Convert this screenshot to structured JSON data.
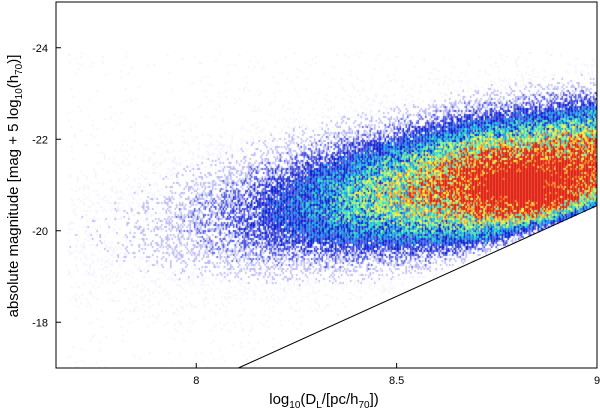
{
  "chart_data": {
    "type": "heatmap",
    "title": "",
    "xlabel": {
      "base": "log",
      "base_sub": "10",
      "mid": "(D",
      "mid_sub": "L",
      "tail": "/[pc/h",
      "tail_sub": "70",
      "end": "])"
    },
    "ylabel": {
      "text": "absolute magnitude [mag + 5 log",
      "sub1": "10",
      "mid": "(h",
      "sub2": "70",
      "end": ")]"
    },
    "xlim": [
      7.65,
      9.0
    ],
    "ylim": [
      -17.0,
      -25.0
    ],
    "y_inverted": true,
    "x_ticks": [
      {
        "value": 8.0,
        "label": "8"
      },
      {
        "value": 8.5,
        "label": "8.5"
      },
      {
        "value": 9.0,
        "label": "9"
      }
    ],
    "y_ticks": [
      {
        "value": -24,
        "label": "-24"
      },
      {
        "value": -22,
        "label": "-22"
      },
      {
        "value": -20,
        "label": "-20"
      },
      {
        "value": -18,
        "label": "-18"
      }
    ],
    "grid": false,
    "colormap": [
      "#f2f2ff",
      "#b8b8f4",
      "#4a52e0",
      "#0b1fd0",
      "#1b8ee8",
      "#28d8c8",
      "#8cf28a",
      "#f4f43c",
      "#f8a020",
      "#e02010"
    ],
    "limit_line": {
      "description_points": [
        [
          8.105,
          -17.0
        ],
        [
          9.0,
          -20.55
        ]
      ],
      "color": "#000000"
    },
    "density_peak": {
      "x": 8.82,
      "y": -20.9
    },
    "density_extent": {
      "x_min": 7.68,
      "x_max": 9.0,
      "y_min": -18.4,
      "y_max": -23.9
    }
  }
}
